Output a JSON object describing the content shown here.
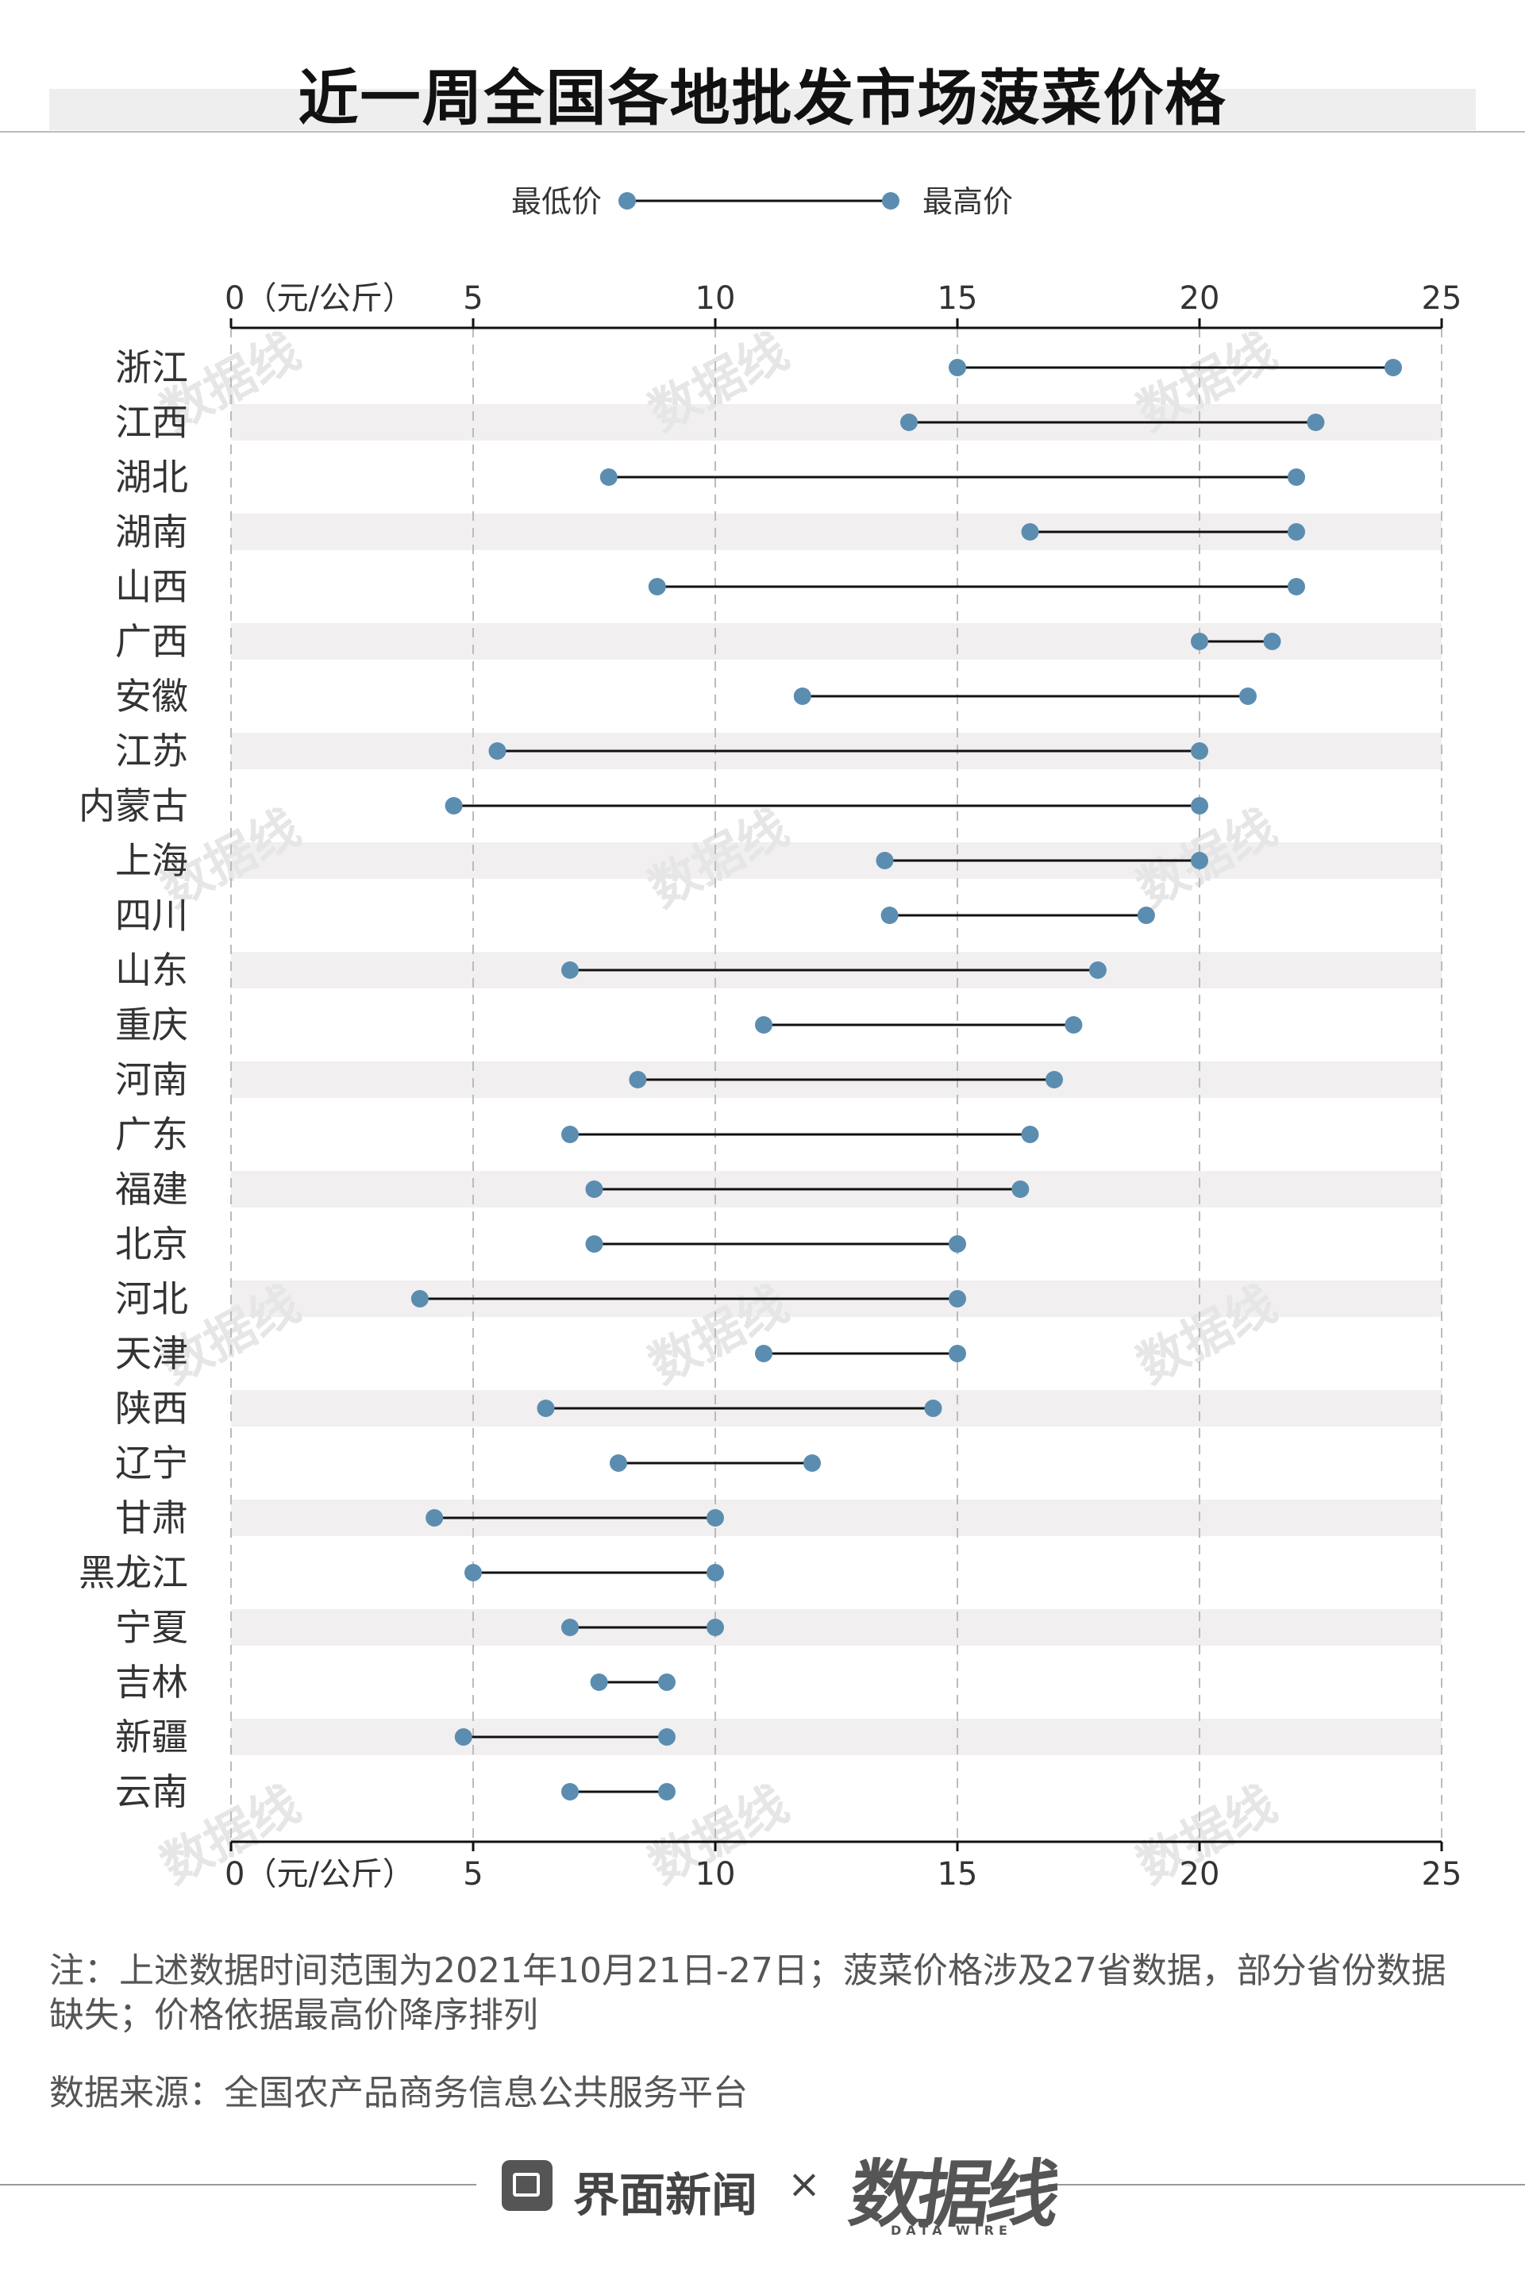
{
  "title": "近一周全国各地批发市场菠菜价格",
  "legend": {
    "min_label": "最低价",
    "max_label": "最高价"
  },
  "colors": {
    "dot": "#5b8db0",
    "line": "#111111",
    "band": "#f1eff0",
    "grid": "#bbbbbb"
  },
  "note": "注：上述数据时间范围为2021年10月21日-27日；菠菜价格涉及27省数据，部分省份数据缺失；价格依据最高价降序排列",
  "source": "数据来源：全国农产品商务信息公共服务平台",
  "footer": {
    "brand": "界面新闻",
    "separator": "×",
    "partner": "数据线",
    "partner_sub": "DATA WIRE"
  },
  "watermark": "数据线",
  "chart_data": {
    "type": "dumbbell",
    "xlim": [
      0,
      25
    ],
    "x_ticks": [
      "0（元/公斤）",
      "5",
      "10",
      "15",
      "20",
      "25"
    ],
    "x_tick_values": [
      0,
      5,
      10,
      15,
      20,
      25
    ],
    "legend_position": "top",
    "grid": true,
    "categories": [
      "浙江",
      "江西",
      "湖北",
      "湖南",
      "山西",
      "广西",
      "安徽",
      "江苏",
      "内蒙古",
      "上海",
      "四川",
      "山东",
      "重庆",
      "河南",
      "广东",
      "福建",
      "北京",
      "河北",
      "天津",
      "陕西",
      "辽宁",
      "甘肃",
      "黑龙江",
      "宁夏",
      "吉林",
      "新疆",
      "云南"
    ],
    "series": [
      {
        "name": "最低价",
        "values": [
          15,
          14,
          7.8,
          16.5,
          8.8,
          20,
          11.8,
          5.5,
          4.6,
          13.5,
          13.6,
          7,
          11,
          8.4,
          7,
          7.5,
          7.5,
          3.9,
          11,
          6.5,
          8,
          4.2,
          5,
          7,
          7.6,
          4.8,
          7
        ]
      },
      {
        "name": "最高价",
        "values": [
          24,
          22.4,
          22,
          22,
          22,
          21.5,
          21,
          20,
          20,
          20,
          18.9,
          17.9,
          17.4,
          17,
          16.5,
          16.3,
          15,
          15,
          15,
          14.5,
          12,
          10,
          10,
          10,
          9,
          9,
          9
        ]
      }
    ]
  }
}
